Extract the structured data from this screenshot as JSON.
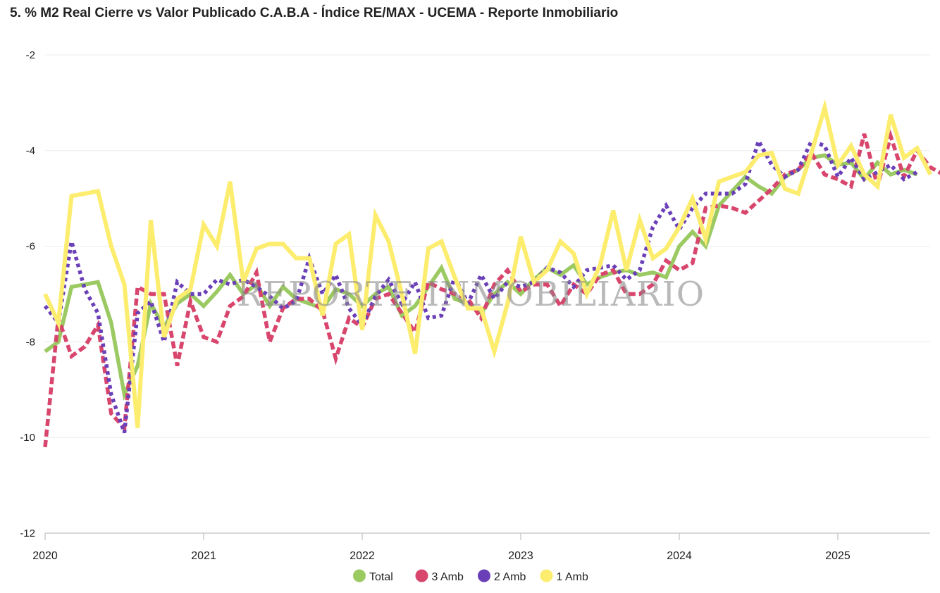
{
  "title": "5. % M2 Real Cierre vs Valor Publicado C.A.B.A - Índice RE/MAX - UCEMA - Reporte Inmobiliario",
  "watermark": "REPORTE INMOBILIARIO",
  "chart_data": {
    "type": "line",
    "title": "5. % M2 Real Cierre vs Valor Publicado C.A.B.A - Índice RE/MAX - UCEMA - Reporte Inmobiliario",
    "xlabel": "",
    "ylabel": "",
    "x_start": "2020-01",
    "x_tick_labels": [
      "2020",
      "2021",
      "2022",
      "2023",
      "2024",
      "2025"
    ],
    "xlim": [
      0,
      66
    ],
    "ylim": [
      -12,
      -2
    ],
    "y_ticks": [
      -2,
      -4,
      -6,
      -8,
      -10,
      -12
    ],
    "legend_position": "bottom-center",
    "series": [
      {
        "name": "Total",
        "color": "#9bc962",
        "style": "solid",
        "values": [
          -8.2,
          -8.0,
          -6.85,
          -6.8,
          -6.75,
          -7.6,
          -9.1,
          -8.5,
          -7.2,
          -7.7,
          -7.2,
          -7.0,
          -7.25,
          -6.95,
          -6.6,
          -7.0,
          -6.8,
          -7.25,
          -6.85,
          -7.1,
          -7.2,
          -7.3,
          -6.9,
          -7.0,
          -7.25,
          -7.0,
          -6.85,
          -7.45,
          -7.25,
          -6.85,
          -6.45,
          -7.1,
          -7.2,
          -7.4,
          -7.0,
          -6.75,
          -7.0,
          -6.7,
          -6.45,
          -6.6,
          -6.4,
          -6.8,
          -6.65,
          -6.55,
          -6.5,
          -6.6,
          -6.55,
          -6.65,
          -6.0,
          -5.7,
          -6.0,
          -5.15,
          -4.85,
          -4.55,
          -4.75,
          -4.9,
          -4.55,
          -4.4,
          -4.15,
          -4.1,
          -4.3,
          -4.25,
          -4.6,
          -4.25,
          -4.5,
          -4.4,
          -4.5
        ]
      },
      {
        "name": "3 Amb",
        "color": "#d8456d",
        "style": "dashed",
        "values": [
          -10.2,
          -7.5,
          -8.3,
          -8.1,
          -7.65,
          -9.5,
          -9.8,
          -6.85,
          -7.0,
          -7.0,
          -8.5,
          -7.15,
          -7.9,
          -8.0,
          -7.25,
          -7.05,
          -6.55,
          -8.0,
          -7.3,
          -7.1,
          -7.1,
          -7.35,
          -8.35,
          -7.5,
          -7.7,
          -7.1,
          -7.0,
          -7.4,
          -7.8,
          -6.75,
          -6.9,
          -7.0,
          -7.1,
          -7.5,
          -6.8,
          -6.5,
          -6.95,
          -6.8,
          -6.8,
          -7.25,
          -6.8,
          -7.0,
          -6.6,
          -6.5,
          -7.0,
          -7.0,
          -6.8,
          -6.3,
          -6.5,
          -6.35,
          -5.2,
          -5.15,
          -5.2,
          -5.3,
          -5.05,
          -4.8,
          -4.5,
          -4.4,
          -4.05,
          -4.5,
          -4.6,
          -4.75,
          -3.65,
          -4.75,
          -3.7,
          -4.55,
          -4.0,
          -4.35,
          -4.5
        ]
      },
      {
        "name": "2 Amb",
        "color": "#6a3fb8",
        "style": "dotted",
        "values": [
          -7.25,
          -7.6,
          -5.9,
          -6.9,
          -7.4,
          -9.1,
          -9.9,
          -7.4,
          -7.15,
          -8.0,
          -6.75,
          -7.0,
          -7.0,
          -6.7,
          -6.8,
          -6.7,
          -6.85,
          -7.05,
          -7.3,
          -7.15,
          -6.25,
          -7.0,
          -6.6,
          -7.3,
          -7.65,
          -7.05,
          -6.7,
          -7.2,
          -6.75,
          -7.5,
          -7.45,
          -6.65,
          -7.2,
          -6.6,
          -7.1,
          -6.75,
          -6.85,
          -6.75,
          -6.45,
          -6.55,
          -6.85,
          -6.5,
          -6.45,
          -6.4,
          -6.7,
          -6.5,
          -5.6,
          -5.15,
          -5.65,
          -5.2,
          -4.9,
          -4.9,
          -4.9,
          -4.7,
          -3.8,
          -4.3,
          -4.55,
          -4.4,
          -3.8,
          -3.9,
          -4.55,
          -4.15,
          -4.6,
          -4.45,
          -4.3,
          -4.6,
          -4.45
        ]
      },
      {
        "name": "1 Amb",
        "color": "#fced6e",
        "style": "solid",
        "values": [
          -7.0,
          -7.6,
          -4.95,
          -4.9,
          -4.85,
          -6.0,
          -6.8,
          -9.8,
          -5.45,
          -7.9,
          -7.1,
          -6.9,
          -5.55,
          -6.0,
          -4.65,
          -6.75,
          -6.05,
          -5.95,
          -5.95,
          -6.25,
          -6.25,
          -7.45,
          -5.95,
          -5.75,
          -7.75,
          -5.35,
          -5.9,
          -7.0,
          -8.25,
          -6.05,
          -5.9,
          -6.65,
          -7.3,
          -7.3,
          -8.2,
          -7.2,
          -5.8,
          -6.75,
          -6.5,
          -5.9,
          -6.15,
          -7.0,
          -6.4,
          -5.25,
          -6.5,
          -5.45,
          -6.25,
          -6.05,
          -5.6,
          -5.0,
          -5.85,
          -4.65,
          -4.55,
          -4.45,
          -4.1,
          -4.05,
          -4.8,
          -4.9,
          -4.05,
          -3.1,
          -4.3,
          -3.9,
          -4.5,
          -4.75,
          -3.25,
          -4.15,
          -3.95,
          -4.5
        ]
      }
    ]
  }
}
